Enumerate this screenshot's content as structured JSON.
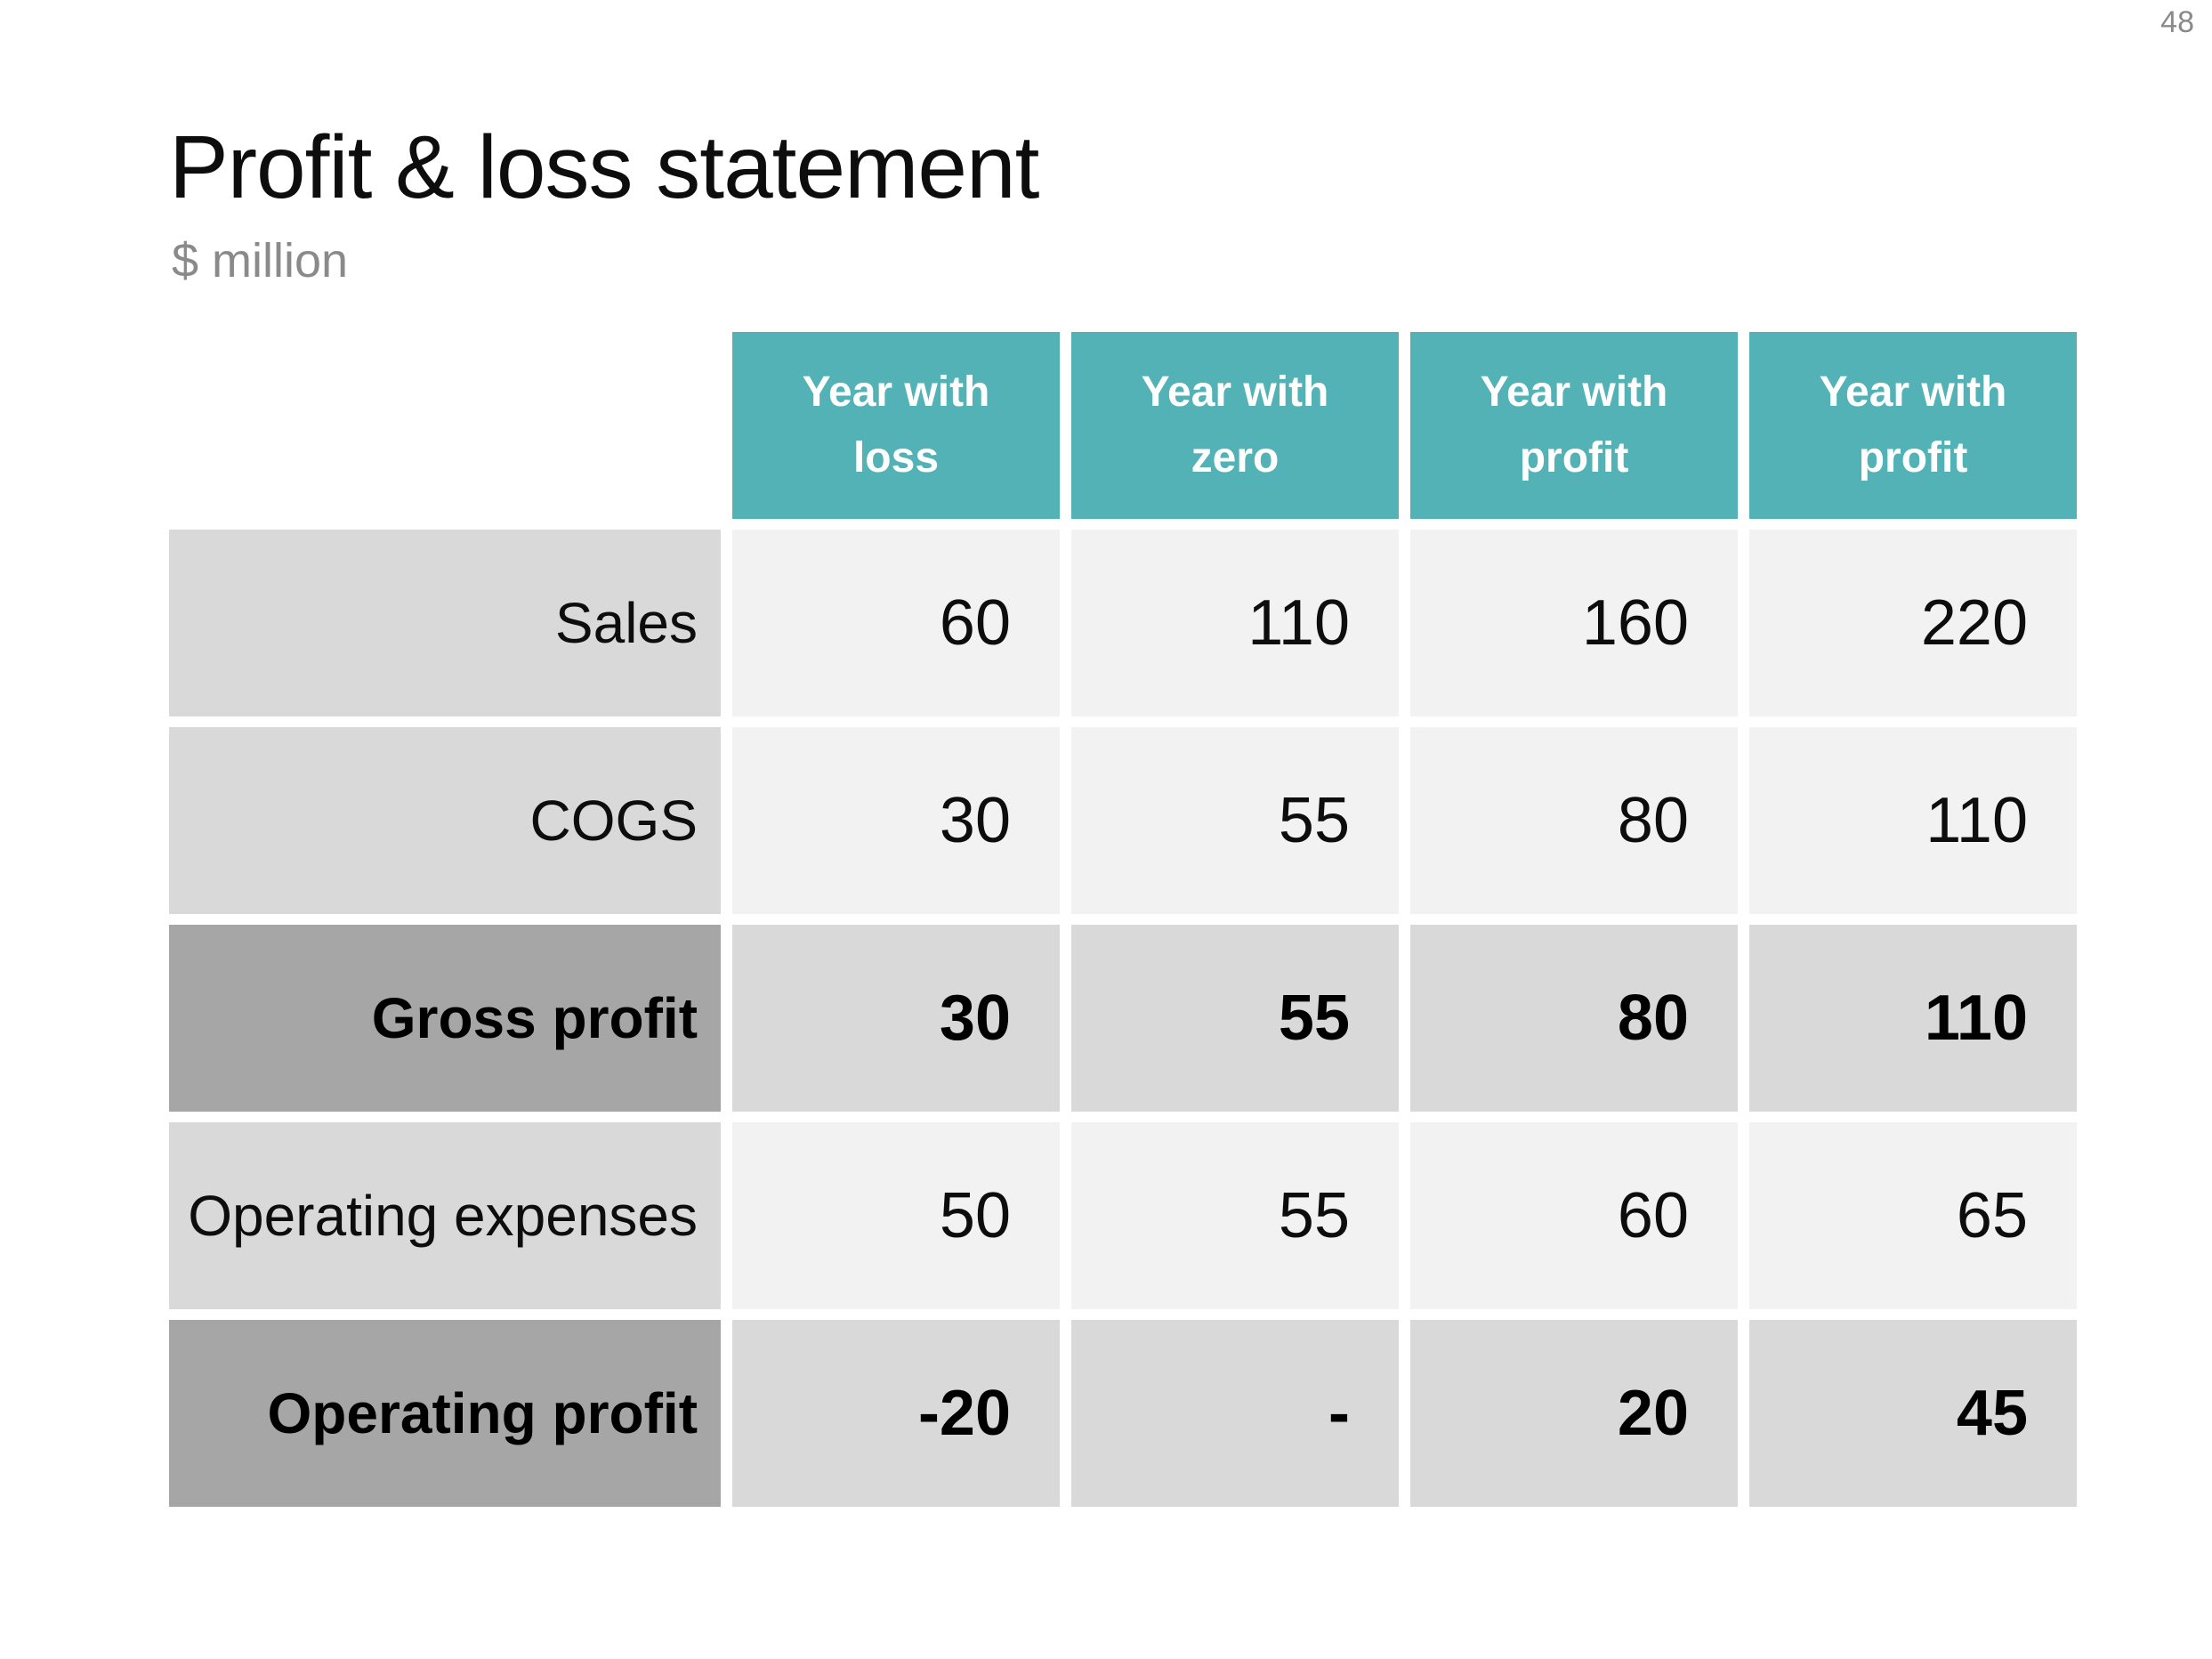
{
  "page": {
    "number": "48"
  },
  "header": {
    "title": "Profit & loss statement",
    "subtitle": "$ million"
  },
  "table": {
    "columns": [
      "Year with loss",
      "Year with zero",
      "Year with profit",
      "Year with profit"
    ],
    "rows": [
      {
        "label": "Sales",
        "emphasis": false,
        "values": [
          "60",
          "110",
          "160",
          "220"
        ]
      },
      {
        "label": "COGS",
        "emphasis": false,
        "values": [
          "30",
          "55",
          "80",
          "110"
        ]
      },
      {
        "label": "Gross profit",
        "emphasis": true,
        "values": [
          "30",
          "55",
          "80",
          "110"
        ]
      },
      {
        "label": "Operating expenses",
        "emphasis": false,
        "values": [
          "50",
          "55",
          "60",
          "65"
        ]
      },
      {
        "label": "Operating profit",
        "emphasis": true,
        "values": [
          "-20",
          "-",
          "20",
          "45"
        ]
      }
    ]
  },
  "colors": {
    "teal": "#52b2b5",
    "label_bg": "#d9d9d9",
    "label_bg_strong": "#a6a6a6",
    "cell_bg": "#f2f2f2",
    "cell_bg_strong": "#d9d9d9",
    "text": "#0d0d0d",
    "muted": "#8a8a8a"
  }
}
